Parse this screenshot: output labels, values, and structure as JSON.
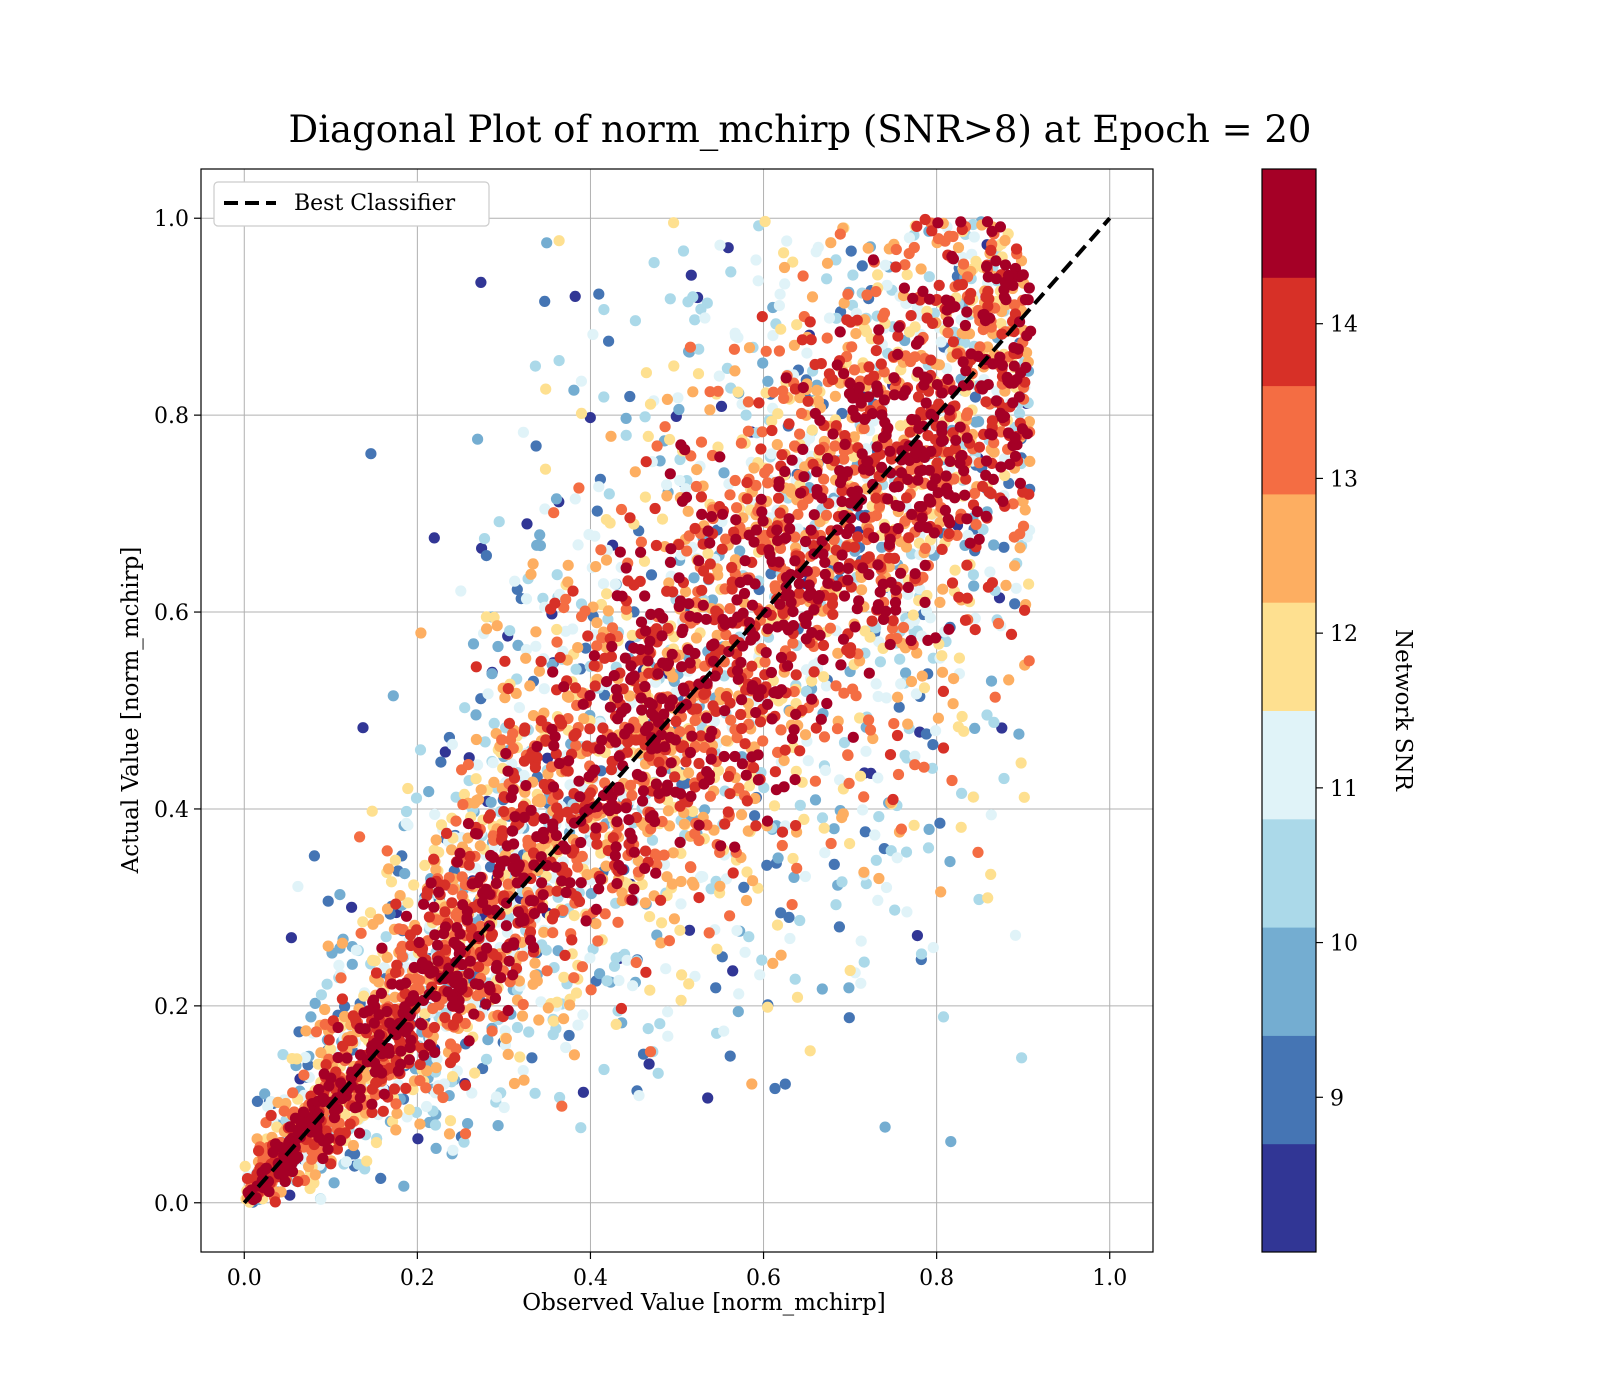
{
  "chart_data": {
    "type": "scatter",
    "title": "Diagonal Plot of norm_mchirp (SNR>8) at Epoch = 20",
    "xlabel": "Observed Value [norm_mchirp]",
    "ylabel": "Actual Value [norm_mchirp]",
    "xlim": [
      -0.05,
      1.05
    ],
    "ylim": [
      -0.05,
      1.05
    ],
    "x_ticks": [
      "0.0",
      "0.2",
      "0.4",
      "0.6",
      "0.8",
      "1.0"
    ],
    "y_ticks": [
      "0.0",
      "0.2",
      "0.4",
      "0.6",
      "0.8",
      "1.0"
    ],
    "grid": true,
    "legend": {
      "placement": "top-left",
      "entries": [
        {
          "label": "Best Classifier",
          "style": "dashed",
          "color": "#000000"
        }
      ]
    },
    "reference_line": {
      "name": "Best Classifier",
      "x": [
        0.0,
        1.0
      ],
      "y": [
        0.0,
        1.0
      ]
    },
    "point_distribution": {
      "description_of_values": "dense band along y = x; points with higher SNR lie closest to the diagonal",
      "x_range": [
        0.0,
        0.91
      ],
      "y_range": [
        0.0,
        1.0
      ],
      "color_by": "Network SNR"
    },
    "colorbar": {
      "label": "Network SNR",
      "range": [
        8,
        15
      ],
      "ticks": [
        "9",
        "10",
        "11",
        "12",
        "13",
        "14"
      ],
      "tick_values": [
        9,
        10,
        11,
        12,
        13,
        14
      ],
      "colors": [
        "#313695",
        "#4575b4",
        "#74add1",
        "#abd9e9",
        "#e0f3f8",
        "#fee090",
        "#fdae61",
        "#f46d43",
        "#d73027",
        "#a50026"
      ],
      "discrete_levels": 10
    }
  }
}
